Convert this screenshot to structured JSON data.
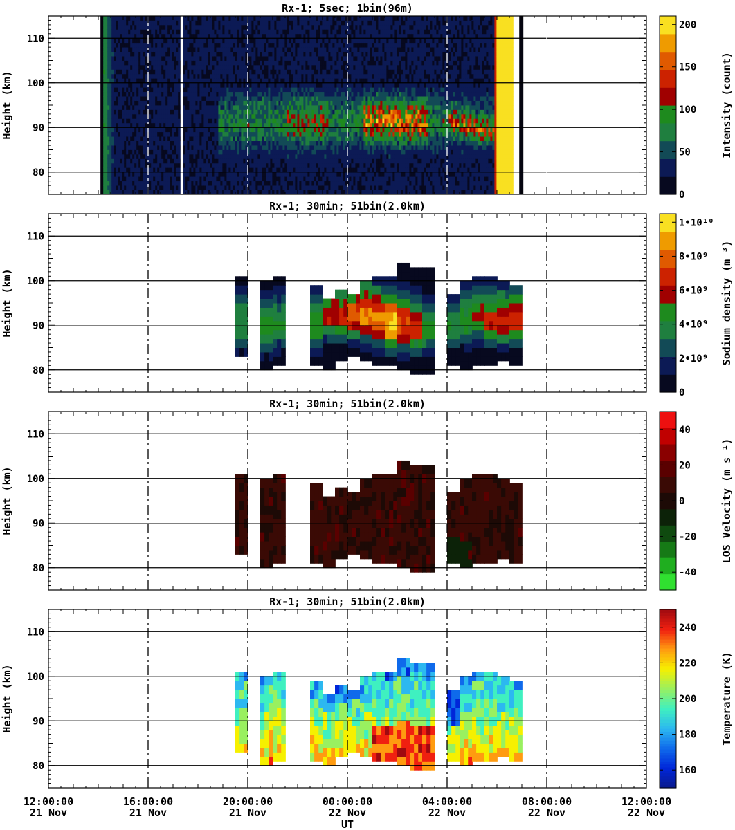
{
  "figure": {
    "xlabel": "UT",
    "x_ticks": [
      {
        "time": "12:00:00",
        "date": "21 Nov"
      },
      {
        "time": "16:00:00",
        "date": "21 Nov"
      },
      {
        "time": "20:00:00",
        "date": "21 Nov"
      },
      {
        "time": "00:00:00",
        "date": "22 Nov"
      },
      {
        "time": "04:00:00",
        "date": "22 Nov"
      },
      {
        "time": "08:00:00",
        "date": "22 Nov"
      },
      {
        "time": "12:00:00",
        "date": "22 Nov"
      }
    ]
  },
  "chart_data": [
    {
      "type": "heatmap",
      "title": "Rx-1;  5sec; 1bin(96m)",
      "xlabel": "UT",
      "ylabel": "Height (km)",
      "x_range": [
        "21 Nov 12:00:00",
        "22 Nov 12:00:00"
      ],
      "x_range_hours": [
        12,
        36
      ],
      "ylim": [
        75,
        115
      ],
      "y_ticks": [
        "80",
        "90",
        "100",
        "110"
      ],
      "colorbar": {
        "label": "Intensity (count)",
        "range": [
          0,
          210
        ],
        "ticks": [
          "0",
          "50",
          "100",
          "150",
          "200"
        ]
      },
      "data_windows_hours": [
        [
          14.2,
          17.3
        ],
        [
          17.4,
          30.6
        ],
        [
          30.95,
          31.05
        ]
      ],
      "description_values": {
        "background_count": 15,
        "sodium_layer_height_km": [
          82,
          98
        ],
        "peak_height_km": 91,
        "peak_count": 120,
        "sunrise_edge_hours": 29.9
      }
    },
    {
      "type": "heatmap",
      "title": "Rx-1; 30min; 51bin(2.0km)",
      "xlabel": "UT",
      "ylabel": "Height (km)",
      "x_range_hours": [
        12,
        36
      ],
      "ylim": [
        75,
        115
      ],
      "y_ticks": [
        "80",
        "90",
        "100",
        "110"
      ],
      "colorbar": {
        "label": "Sodium density (m⁻³)",
        "range": [
          0,
          10500000000.0
        ],
        "ticks": [
          "0",
          "2•10⁹",
          "4•10⁹",
          "6•10⁹",
          "8•10⁹",
          "1•10¹⁰"
        ]
      },
      "time_bins_hours": [
        19.5,
        20.0,
        20.5,
        21.0,
        21.5,
        22.0,
        22.5,
        23.0,
        23.5,
        24.0,
        24.5,
        25.0,
        25.5,
        26.0,
        26.5,
        27.0,
        27.5,
        28.0,
        28.5,
        29.0,
        29.5,
        30.0,
        30.5,
        31.0
      ],
      "layer_bottom_km": [
        83,
        null,
        80,
        81,
        null,
        null,
        81,
        80,
        82,
        83,
        82,
        81,
        81,
        80,
        79,
        79,
        null,
        81,
        80,
        81,
        81,
        82,
        81,
        null
      ],
      "layer_top_km": [
        101,
        null,
        100,
        101,
        null,
        null,
        98,
        95,
        97,
        97,
        99,
        101,
        101,
        103,
        103,
        102,
        null,
        97,
        100,
        101,
        101,
        99,
        99,
        null
      ],
      "peak_height_km": [
        90,
        null,
        89,
        90,
        null,
        null,
        90,
        92,
        92,
        92,
        92,
        91,
        90,
        90,
        89,
        89,
        null,
        90,
        91,
        92,
        91,
        91,
        91,
        null
      ],
      "peak_density": [
        4200000000.0,
        null,
        4600000000.0,
        4400000000.0,
        null,
        null,
        5000000000.0,
        6200000000.0,
        6800000000.0,
        7600000000.0,
        8600000000.0,
        9000000000.0,
        10000000000.0,
        7800000000.0,
        6400000000.0,
        4500000000.0,
        null,
        4100000000.0,
        4800000000.0,
        5700000000.0,
        6300000000.0,
        6600000000.0,
        6800000000.0,
        null
      ]
    },
    {
      "type": "heatmap",
      "title": "Rx-1; 30min; 51bin(2.0km)",
      "xlabel": "UT",
      "ylabel": "Height (km)",
      "x_range_hours": [
        12,
        36
      ],
      "ylim": [
        75,
        115
      ],
      "y_ticks": [
        "80",
        "90",
        "100",
        "110"
      ],
      "colorbar": {
        "label": "LOS Velocity (m s⁻¹)",
        "range": [
          -50,
          50
        ],
        "ticks": [
          "-40",
          "-20",
          "0",
          "20",
          "40"
        ]
      },
      "typical_velocity": 6,
      "range_velocity": [
        -12,
        14
      ]
    },
    {
      "type": "heatmap",
      "title": "Rx-1; 30min; 51bin(2.0km)",
      "xlabel": "UT",
      "ylabel": "Height (km)",
      "x_range_hours": [
        12,
        36
      ],
      "ylim": [
        75,
        115
      ],
      "y_ticks": [
        "80",
        "90",
        "100",
        "110"
      ],
      "colorbar": {
        "label": "Temperature (K)",
        "range": [
          150,
          250
        ],
        "ticks": [
          "160",
          "180",
          "200",
          "220",
          "240"
        ]
      },
      "temperature_regions": {
        "upper_layer_K": 195,
        "lower_layer_K": 220,
        "warm_core_K": 232,
        "warm_core_hours": [
          25.0,
          27.5
        ],
        "warm_core_height_km": [
          80,
          89
        ],
        "cold_top_K": 178
      }
    }
  ],
  "colors": {
    "intensity": [
      "#07091f",
      "#0c1a55",
      "#124a56",
      "#1f7f3f",
      "#1e8a1e",
      "#a00000",
      "#cc2200",
      "#e05a00",
      "#ef9b00",
      "#f9e021"
    ],
    "density": [
      "#07091f",
      "#0c1a55",
      "#124a56",
      "#1f7f3f",
      "#1e8a1e",
      "#a00000",
      "#cc2200",
      "#e05a00",
      "#ef9b00",
      "#f9e021"
    ],
    "velocity": [
      "#30e030",
      "#1fae1f",
      "#167a16",
      "#0f4a0f",
      "#0c2208",
      "#1d0a06",
      "#3a0a05",
      "#5a0000",
      "#8a0000",
      "#c00000",
      "#ee1010"
    ],
    "temperature": [
      "#0a1a8c",
      "#0026d9",
      "#0f6aeb",
      "#2cb8f0",
      "#3ff0c0",
      "#99f060",
      "#f6f000",
      "#ff9b10",
      "#f02010",
      "#a00a10"
    ]
  }
}
